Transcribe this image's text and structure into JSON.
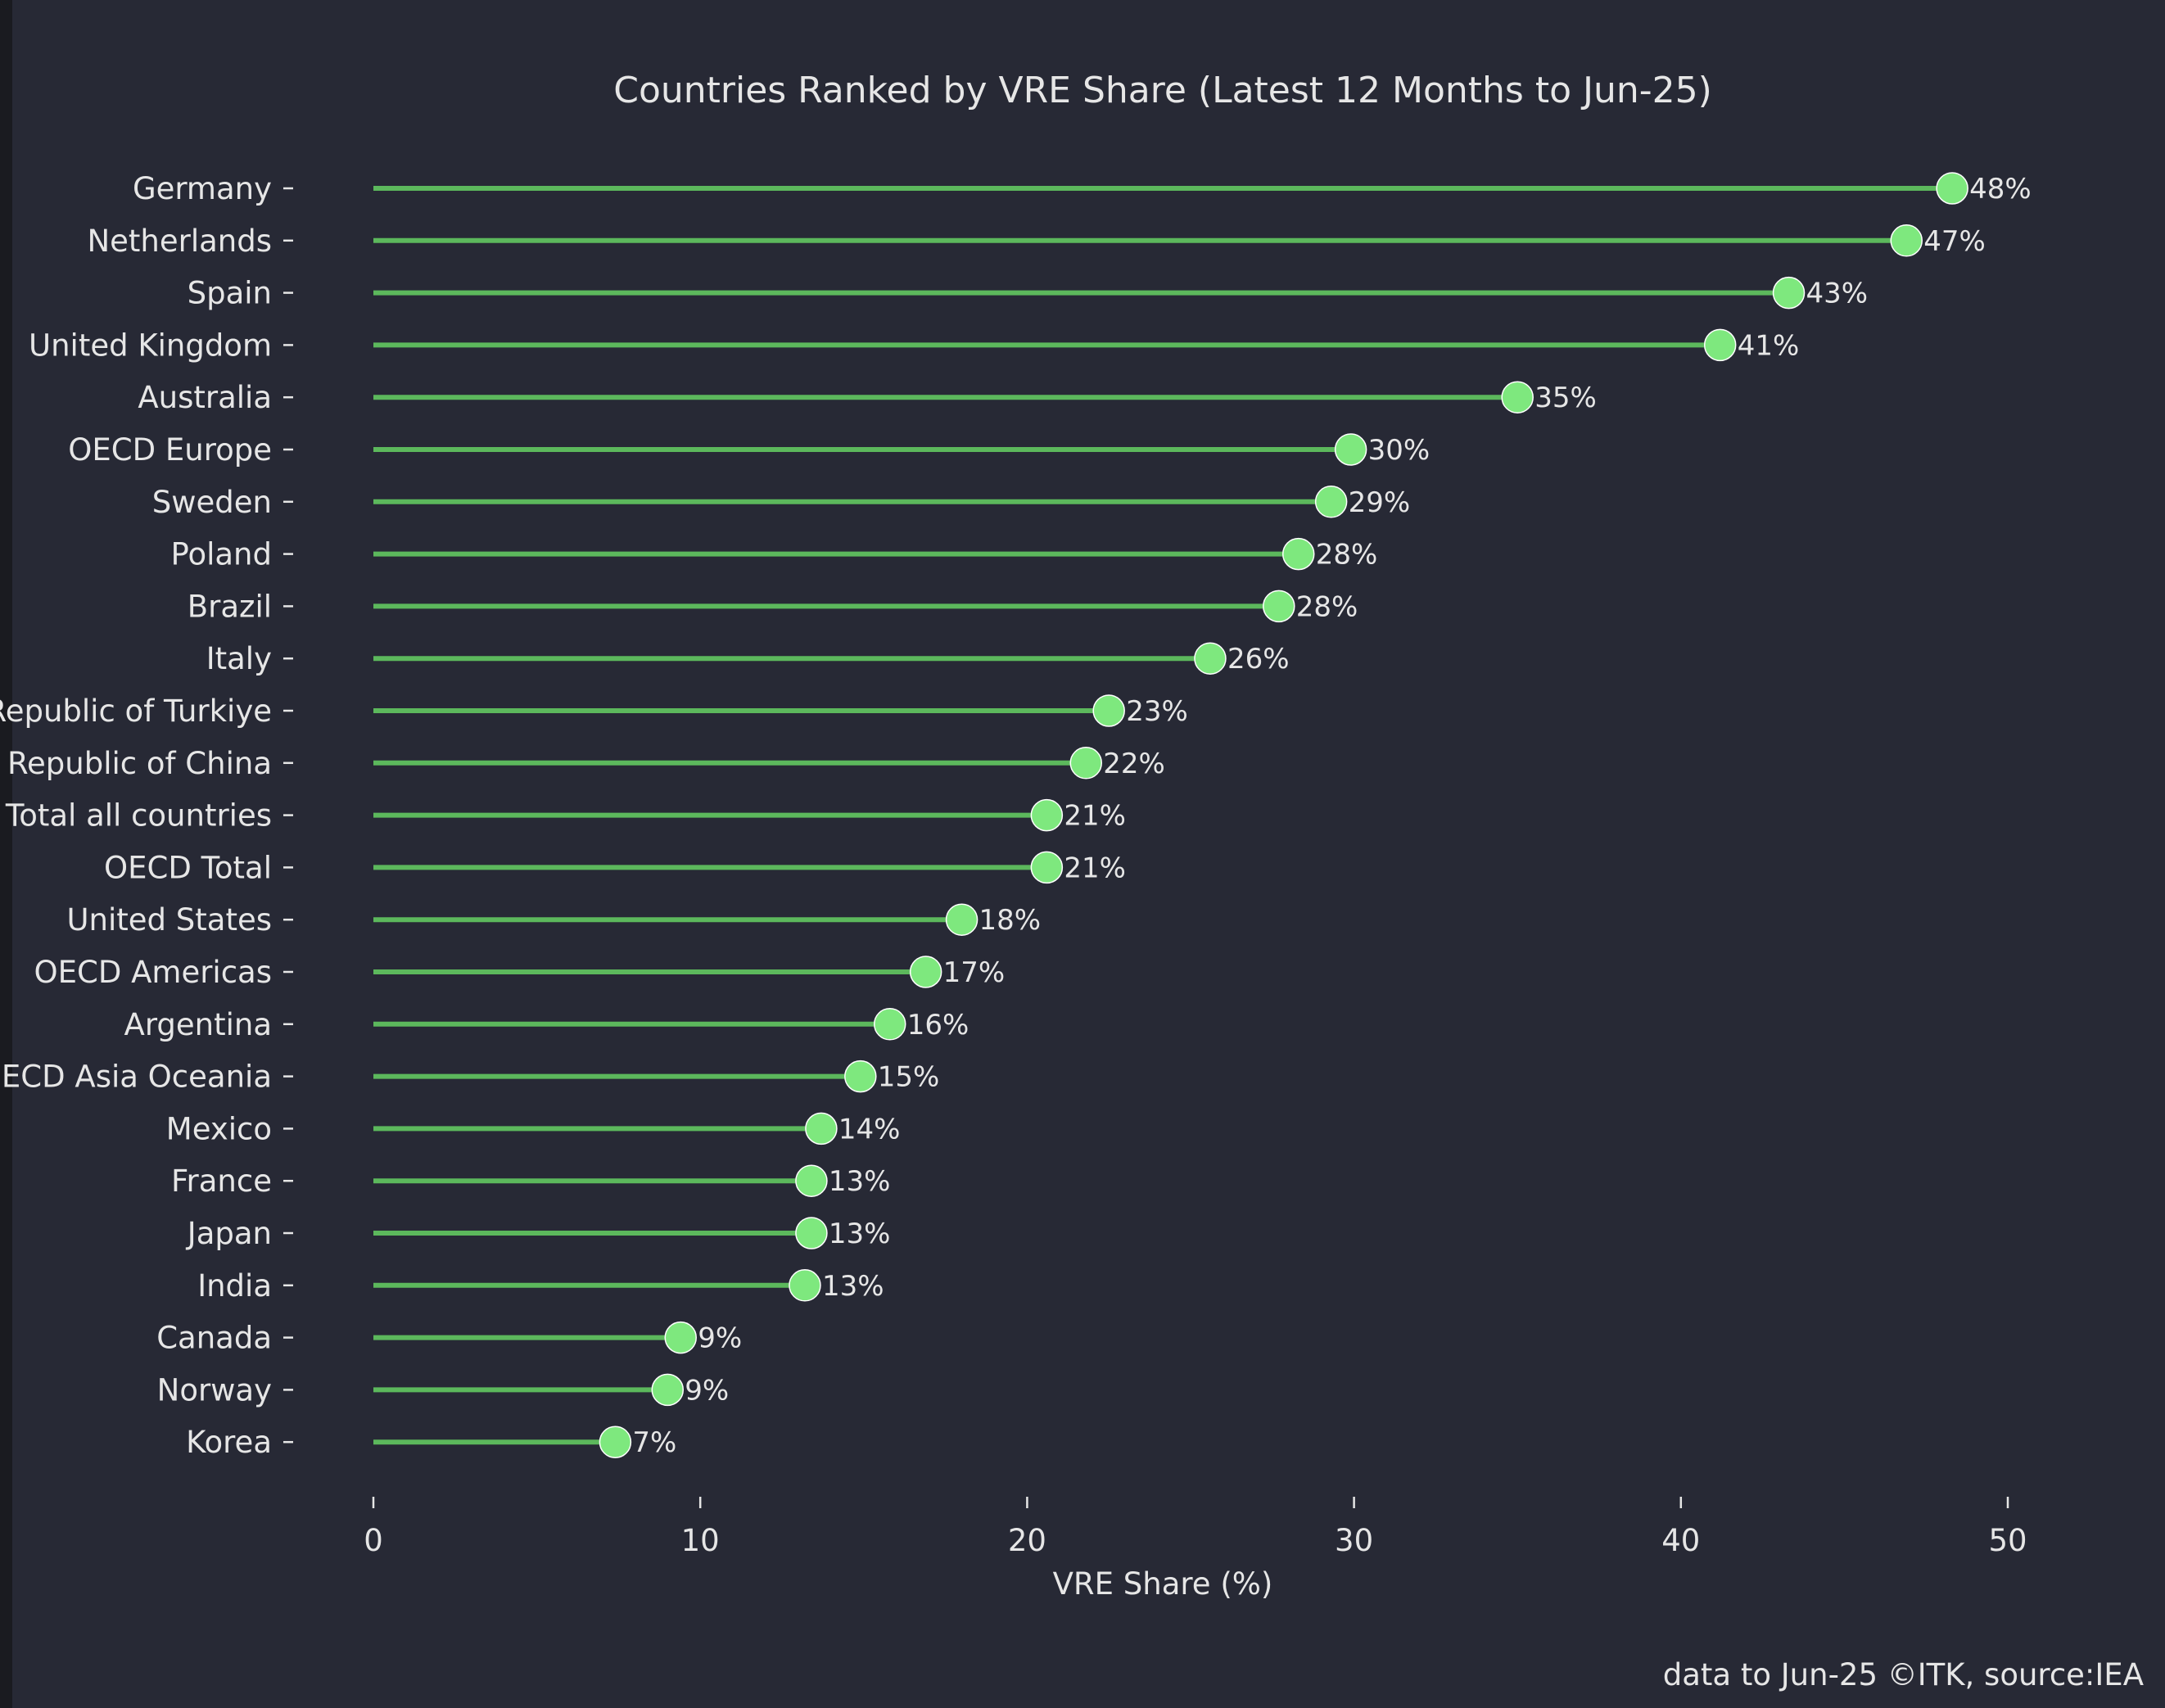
{
  "chart_data": {
    "type": "lollipop",
    "title": "Countries Ranked by VRE Share (Latest 12 Months to Jun-25)",
    "xlabel": "VRE Share (%)",
    "ylabel": "",
    "xlim": [
      0,
      51
    ],
    "xticks": [
      0,
      10,
      20,
      30,
      40,
      50
    ],
    "grid": false,
    "footnote": "data to Jun-25 ©ITK, source:IEA",
    "categories": [
      "Germany",
      "Netherlands",
      "Spain",
      "United Kingdom",
      "Australia",
      "OECD Europe",
      "Sweden",
      "Poland",
      "Brazil",
      "Italy",
      "Republic of Turkiye",
      "People's Republic of China",
      "Total all countries",
      "OECD Total",
      "United States",
      "OECD Americas",
      "Argentina",
      "OECD Asia Oceania",
      "Mexico",
      "France",
      "Japan",
      "India",
      "Canada",
      "Norway",
      "Korea"
    ],
    "values": [
      48.3,
      46.9,
      43.3,
      41.2,
      35.0,
      29.9,
      29.3,
      28.3,
      27.7,
      25.6,
      22.5,
      21.8,
      20.6,
      20.6,
      18.0,
      16.9,
      15.8,
      14.9,
      13.7,
      13.4,
      13.4,
      13.2,
      9.4,
      9.0,
      7.4
    ],
    "labels": [
      "48%",
      "47%",
      "43%",
      "41%",
      "35%",
      "30%",
      "29%",
      "28%",
      "28%",
      "26%",
      "23%",
      "22%",
      "21%",
      "21%",
      "18%",
      "17%",
      "16%",
      "15%",
      "14%",
      "13%",
      "13%",
      "13%",
      "9%",
      "9%",
      "7%"
    ],
    "colors": {
      "background": "#272935",
      "stem": "#5cb85c",
      "marker": "#7ee87e",
      "text": "#e6e6e6"
    }
  }
}
